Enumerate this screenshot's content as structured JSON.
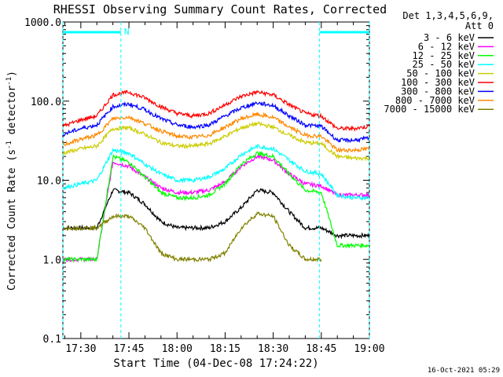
{
  "chart_data": {
    "type": "line",
    "title": "RHESSI Observing Summary Count Rates, Corrected",
    "xlabel": "Start Time (04-Dec-08 17:24:22)",
    "ylabel_main": "Corrected Count Rate (s",
    "ylabel_sup1": "-1",
    "ylabel_mid": " detector",
    "ylabel_sup2": "-1",
    "ylabel_end": ")",
    "yscale": "log",
    "ylim": [
      0.1,
      1000
    ],
    "xlim_minutes": [
      -5.6,
      90.0
    ],
    "y_ticks": [
      {
        "value": 1000,
        "label": "1000.0"
      },
      {
        "value": 100,
        "label": "100.0"
      },
      {
        "value": 10,
        "label": "10.0"
      },
      {
        "value": 1,
        "label": "1.0"
      },
      {
        "value": 0.1,
        "label": "0.1"
      }
    ],
    "x_ticks": [
      {
        "minute": 0,
        "label": "17:30"
      },
      {
        "minute": 15,
        "label": "17:45"
      },
      {
        "minute": 30,
        "label": "18:00"
      },
      {
        "minute": 45,
        "label": "18:15"
      },
      {
        "minute": 60,
        "label": "18:30"
      },
      {
        "minute": 75,
        "label": "18:45"
      },
      {
        "minute": 90,
        "label": "19:00"
      }
    ],
    "legend_header": [
      "Det 1,3,4,5,6,9,",
      "Att 0"
    ],
    "legend_position": "right",
    "series": [
      {
        "name": "3 - 6 keV",
        "color": "#000000",
        "x": [
          -5.6,
          0,
          5,
          10,
          15,
          20,
          25,
          30,
          35,
          40,
          45,
          50,
          55,
          60,
          65,
          70,
          75,
          80,
          85,
          90
        ],
        "values": [
          2.5,
          2.5,
          2.5,
          7.5,
          7.0,
          5.0,
          3.0,
          2.5,
          2.5,
          2.5,
          3.0,
          4.5,
          7.5,
          7.0,
          4.0,
          2.5,
          2.5,
          2.0,
          2.0,
          2.0
        ]
      },
      {
        "name": "6 - 12 keV",
        "color": "#ff00ff",
        "x": [
          -5.6,
          0,
          5,
          10,
          15,
          20,
          25,
          30,
          35,
          40,
          45,
          50,
          55,
          60,
          65,
          70,
          75,
          80,
          85,
          90
        ],
        "values": [
          1.0,
          1.0,
          1.0,
          17,
          15,
          11,
          8.0,
          7.0,
          7.0,
          7.5,
          9.5,
          15,
          20,
          18,
          12,
          9.0,
          8.5,
          6.5,
          6.5,
          6.5
        ]
      },
      {
        "name": "12 - 25 keV",
        "color": "#00ff00",
        "x": [
          -5.6,
          0,
          5,
          10,
          15,
          20,
          25,
          30,
          35,
          40,
          45,
          50,
          55,
          60,
          65,
          70,
          75,
          80,
          85,
          90
        ],
        "values": [
          1.0,
          1.0,
          1.0,
          20,
          17,
          11,
          7.0,
          6.0,
          6.0,
          6.5,
          9.0,
          16,
          22,
          20,
          12,
          7.5,
          7.0,
          1.5,
          1.5,
          1.5
        ]
      },
      {
        "name": "25 - 50 keV",
        "color": "#00ffff",
        "x": [
          -5.6,
          0,
          5,
          10,
          15,
          20,
          25,
          30,
          35,
          40,
          45,
          50,
          55,
          60,
          65,
          70,
          75,
          80,
          85,
          90
        ],
        "values": [
          8.0,
          9.0,
          10,
          24,
          22,
          16,
          12,
          10,
          10,
          11,
          14,
          21,
          27,
          25,
          18,
          13,
          12,
          6.5,
          6.0,
          6.0
        ]
      },
      {
        "name": "50 - 100 keV",
        "color": "#cccc00",
        "x": [
          -5.6,
          0,
          5,
          10,
          15,
          20,
          25,
          30,
          35,
          40,
          45,
          50,
          55,
          60,
          65,
          70,
          75,
          80,
          85,
          90
        ],
        "values": [
          22,
          25,
          27,
          45,
          46,
          38,
          30,
          27,
          27,
          29,
          36,
          46,
          52,
          47,
          37,
          30,
          29,
          20,
          19,
          19
        ]
      },
      {
        "name": "100 - 300 keV",
        "color": "#ff0000",
        "x": [
          -5.6,
          0,
          5,
          10,
          15,
          20,
          25,
          30,
          35,
          40,
          45,
          50,
          55,
          60,
          65,
          70,
          75,
          80,
          85,
          90
        ],
        "values": [
          48,
          58,
          65,
          120,
          130,
          110,
          85,
          70,
          65,
          70,
          90,
          115,
          130,
          120,
          90,
          70,
          65,
          45,
          45,
          48
        ]
      },
      {
        "name": "300 - 800 keV",
        "color": "#0000ff",
        "x": [
          -5.6,
          0,
          5,
          10,
          15,
          20,
          25,
          30,
          35,
          40,
          45,
          50,
          55,
          60,
          65,
          70,
          75,
          80,
          85,
          90
        ],
        "values": [
          38,
          45,
          50,
          85,
          92,
          78,
          60,
          50,
          47,
          50,
          65,
          82,
          95,
          88,
          65,
          50,
          48,
          32,
          32,
          34
        ]
      },
      {
        "name": "800 - 7000 keV",
        "color": "#ff8800",
        "x": [
          -5.6,
          0,
          5,
          10,
          15,
          20,
          25,
          30,
          35,
          40,
          45,
          50,
          55,
          60,
          65,
          70,
          75,
          80,
          85,
          90
        ],
        "values": [
          28,
          33,
          37,
          60,
          63,
          52,
          42,
          36,
          35,
          37,
          47,
          60,
          68,
          62,
          47,
          37,
          36,
          24,
          24,
          25
        ]
      },
      {
        "name": "7000 - 15000 keV",
        "color": "#808000",
        "x": [
          -5.6,
          0,
          5,
          10,
          15,
          20,
          25,
          30,
          35,
          40,
          45,
          50,
          55,
          60,
          65,
          70,
          75,
          80,
          85,
          90
        ],
        "values": [
          2.5,
          2.5,
          2.5,
          3.5,
          3.5,
          2.5,
          1.2,
          1.0,
          1.0,
          1.0,
          1.2,
          2.5,
          3.8,
          3.5,
          1.5,
          1.0,
          1.0,
          null,
          null,
          null
        ]
      }
    ],
    "annotations": {
      "marker_label": "N",
      "flag_color": "#00ffff",
      "flag_spans": [
        [
          -5.6,
          12.5
        ],
        [
          74.4,
          90.0
        ]
      ],
      "vertical_lines": [
        -5.6,
        12.5,
        74.4,
        90.0
      ]
    }
  },
  "footer": {
    "timestamp": "16-Oct-2021 05:29"
  }
}
